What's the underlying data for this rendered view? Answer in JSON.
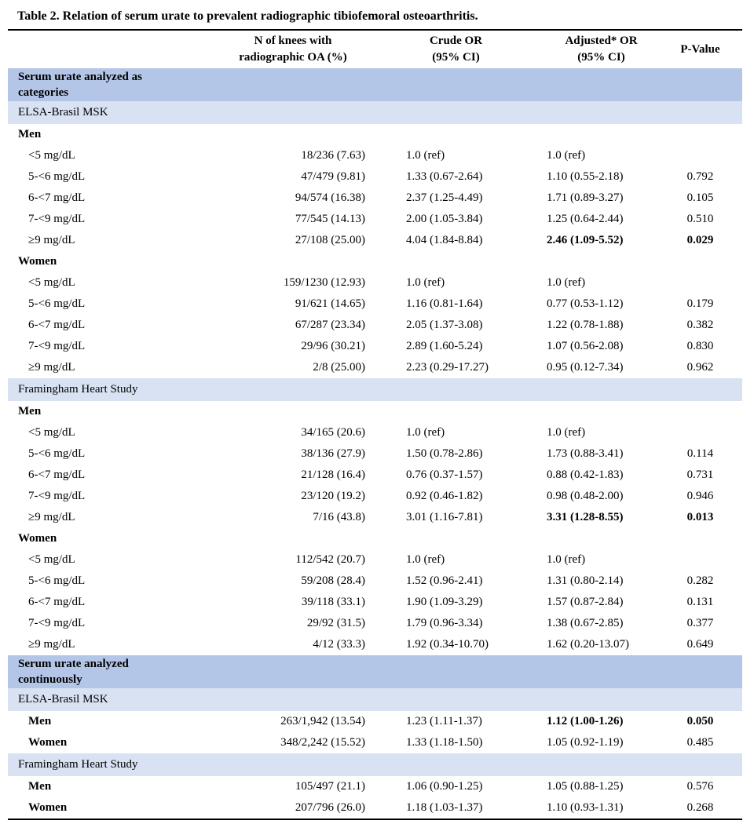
{
  "title": "Table 2. Relation of serum urate to prevalent radiographic tibiofemoral osteoarthritis.",
  "columns": [
    "",
    "N of knees with\nradiographic OA (%)",
    "Crude OR\n(95% CI)",
    "Adjusted* OR\n(95% CI)",
    "P-Value"
  ],
  "colors": {
    "section_band": "#b4c6e7",
    "study_band": "#d9e2f3",
    "rule": "#000000",
    "text": "#000000",
    "background": "#ffffff"
  },
  "rows": [
    {
      "type": "section",
      "label": "Serum urate analyzed as\ncategories"
    },
    {
      "type": "study",
      "label": "ELSA-Brasil MSK"
    },
    {
      "type": "group",
      "label": "Men"
    },
    {
      "type": "data",
      "label": "<5 mg/dL",
      "n": "18/236 (7.63)",
      "crude": "1.0 (ref)",
      "adjusted": "1.0 (ref)",
      "p": ""
    },
    {
      "type": "data",
      "label": "5-<6 mg/dL",
      "n": "47/479 (9.81)",
      "crude": "1.33 (0.67-2.64)",
      "adjusted": "1.10 (0.55-2.18)",
      "p": "0.792"
    },
    {
      "type": "data",
      "label": "6-<7 mg/dL",
      "n": "94/574 (16.38)",
      "crude": "2.37 (1.25-4.49)",
      "adjusted": "1.71 (0.89-3.27)",
      "p": "0.105"
    },
    {
      "type": "data",
      "label": "7-<9 mg/dL",
      "n": "77/545 (14.13)",
      "crude": "2.00 (1.05-3.84)",
      "adjusted": "1.25 (0.64-2.44)",
      "p": "0.510"
    },
    {
      "type": "data",
      "label": "≥9 mg/dL",
      "n": "27/108 (25.00)",
      "crude": "4.04 (1.84-8.84)",
      "adjusted": "2.46 (1.09-5.52)",
      "adjusted_bold": true,
      "p": "0.029",
      "p_bold": true
    },
    {
      "type": "group",
      "label": "Women"
    },
    {
      "type": "data",
      "label": "<5 mg/dL",
      "n": "159/1230 (12.93)",
      "crude": "1.0 (ref)",
      "adjusted": "1.0 (ref)",
      "p": ""
    },
    {
      "type": "data",
      "label": "5-<6 mg/dL",
      "n": "91/621 (14.65)",
      "crude": "1.16 (0.81-1.64)",
      "adjusted": "0.77 (0.53-1.12)",
      "p": "0.179"
    },
    {
      "type": "data",
      "label": "6-<7 mg/dL",
      "n": "67/287 (23.34)",
      "crude": "2.05 (1.37-3.08)",
      "adjusted": "1.22 (0.78-1.88)",
      "p": "0.382"
    },
    {
      "type": "data",
      "label": "7-<9 mg/dL",
      "n": "29/96 (30.21)",
      "crude": "2.89 (1.60-5.24)",
      "adjusted": "1.07 (0.56-2.08)",
      "p": "0.830"
    },
    {
      "type": "data",
      "label": "≥9 mg/dL",
      "n": "2/8 (25.00)",
      "crude": "2.23 (0.29-17.27)",
      "adjusted": "0.95 (0.12-7.34)",
      "p": "0.962"
    },
    {
      "type": "study",
      "label": "Framingham Heart Study"
    },
    {
      "type": "group",
      "label": "Men"
    },
    {
      "type": "data",
      "label": "<5 mg/dL",
      "n": "34/165 (20.6)",
      "crude": "1.0 (ref)",
      "adjusted": "1.0 (ref)",
      "p": ""
    },
    {
      "type": "data",
      "label": "5-<6 mg/dL",
      "n": "38/136 (27.9)",
      "crude": "1.50 (0.78-2.86)",
      "adjusted": "1.73 (0.88-3.41)",
      "p": "0.114"
    },
    {
      "type": "data",
      "label": "6-<7 mg/dL",
      "n": "21/128 (16.4)",
      "crude": "0.76 (0.37-1.57)",
      "adjusted": "0.88 (0.42-1.83)",
      "p": "0.731"
    },
    {
      "type": "data",
      "label": "7-<9 mg/dL",
      "n": "23/120 (19.2)",
      "crude": "0.92 (0.46-1.82)",
      "adjusted": "0.98 (0.48-2.00)",
      "p": "0.946"
    },
    {
      "type": "data",
      "label": "≥9 mg/dL",
      "n": "7/16 (43.8)",
      "crude": "3.01 (1.16-7.81)",
      "adjusted": "3.31 (1.28-8.55)",
      "adjusted_bold": true,
      "p": "0.013",
      "p_bold": true
    },
    {
      "type": "group",
      "label": "Women"
    },
    {
      "type": "data",
      "label": "<5 mg/dL",
      "n": "112/542 (20.7)",
      "crude": "1.0 (ref)",
      "adjusted": "1.0 (ref)",
      "p": ""
    },
    {
      "type": "data",
      "label": "5-<6 mg/dL",
      "n": "59/208 (28.4)",
      "crude": "1.52 (0.96-2.41)",
      "adjusted": "1.31 (0.80-2.14)",
      "p": "0.282"
    },
    {
      "type": "data",
      "label": "6-<7 mg/dL",
      "n": "39/118 (33.1)",
      "crude": "1.90 (1.09-3.29)",
      "adjusted": "1.57 (0.87-2.84)",
      "p": "0.131"
    },
    {
      "type": "data",
      "label": "7-<9 mg/dL",
      "n": "29/92 (31.5)",
      "crude": "1.79 (0.96-3.34)",
      "adjusted": "1.38 (0.67-2.85)",
      "p": "0.377"
    },
    {
      "type": "data",
      "label": "≥9 mg/dL",
      "n": "4/12 (33.3)",
      "crude": "1.92 (0.34-10.70)",
      "adjusted": "1.62 (0.20-13.07)",
      "p": "0.649"
    },
    {
      "type": "section",
      "label": "Serum urate analyzed\ncontinuously"
    },
    {
      "type": "study",
      "label": "ELSA-Brasil MSK"
    },
    {
      "type": "data",
      "label": "Men",
      "label_bold": true,
      "n": "263/1,942 (13.54)",
      "crude": "1.23 (1.11-1.37)",
      "adjusted": "1.12 (1.00-1.26)",
      "adjusted_bold": true,
      "p": "0.050",
      "p_bold": true
    },
    {
      "type": "data",
      "label": "Women",
      "label_bold": true,
      "n": "348/2,242 (15.52)",
      "crude": "1.33 (1.18-1.50)",
      "adjusted": "1.05 (0.92-1.19)",
      "p": "0.485"
    },
    {
      "type": "study",
      "label": "Framingham Heart Study"
    },
    {
      "type": "data",
      "label": "Men",
      "label_bold": true,
      "n": "105/497 (21.1)",
      "crude": "1.06 (0.90-1.25)",
      "adjusted": "1.05 (0.88-1.25)",
      "p": "0.576"
    },
    {
      "type": "data",
      "label": "Women",
      "label_bold": true,
      "n": "207/796 (26.0)",
      "crude": "1.18 (1.03-1.37)",
      "adjusted": "1.10 (0.93-1.31)",
      "p": "0.268"
    }
  ]
}
